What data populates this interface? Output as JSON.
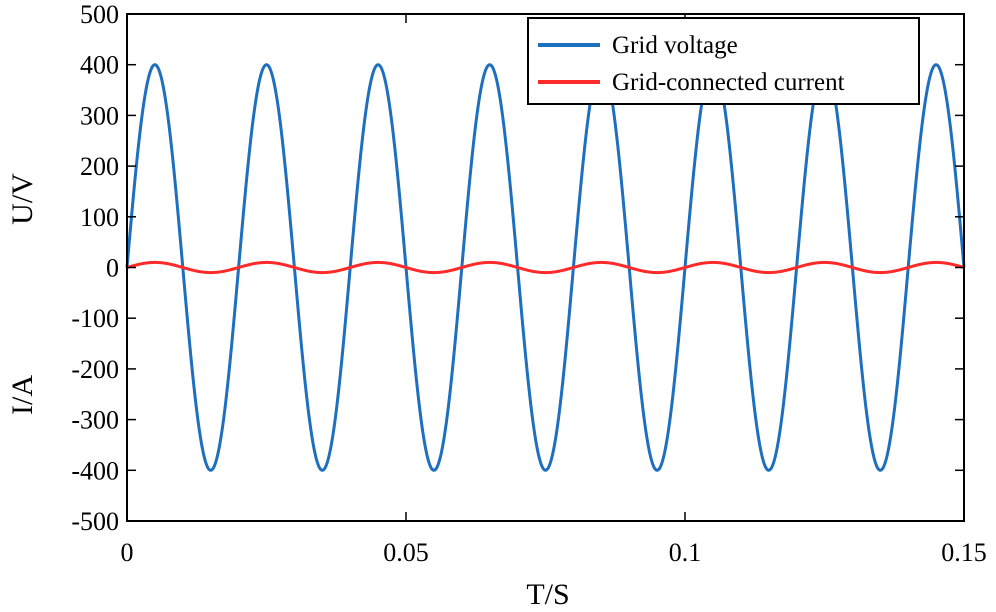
{
  "chart_data": {
    "type": "line",
    "title": "",
    "xlabel": "T/S",
    "ylabel_upper": "U/V",
    "ylabel_lower": "I/A",
    "xlim": [
      0,
      0.15
    ],
    "ylim": [
      -500,
      500
    ],
    "x_ticks": [
      0,
      0.05,
      0.1,
      0.15
    ],
    "x_tick_labels": [
      "0",
      "0.05",
      "0.1",
      "0.15"
    ],
    "y_ticks": [
      500,
      400,
      300,
      200,
      100,
      0,
      -100,
      -200,
      -300,
      -400,
      -500
    ],
    "y_tick_labels": [
      "500",
      "400",
      "300",
      "200",
      "100",
      "0",
      "-100",
      "-200",
      "-300",
      "-400",
      "-500"
    ],
    "grid": false,
    "legend_position": "top-right",
    "series": [
      {
        "name": "Grid voltage",
        "color": "#1f6fbf",
        "amplitude": 400,
        "frequency_hz": 50,
        "phase": 0
      },
      {
        "name": "Grid-connected current",
        "color": "#ff2a2a",
        "amplitude": 10,
        "frequency_hz": 50,
        "phase": 0
      }
    ]
  }
}
